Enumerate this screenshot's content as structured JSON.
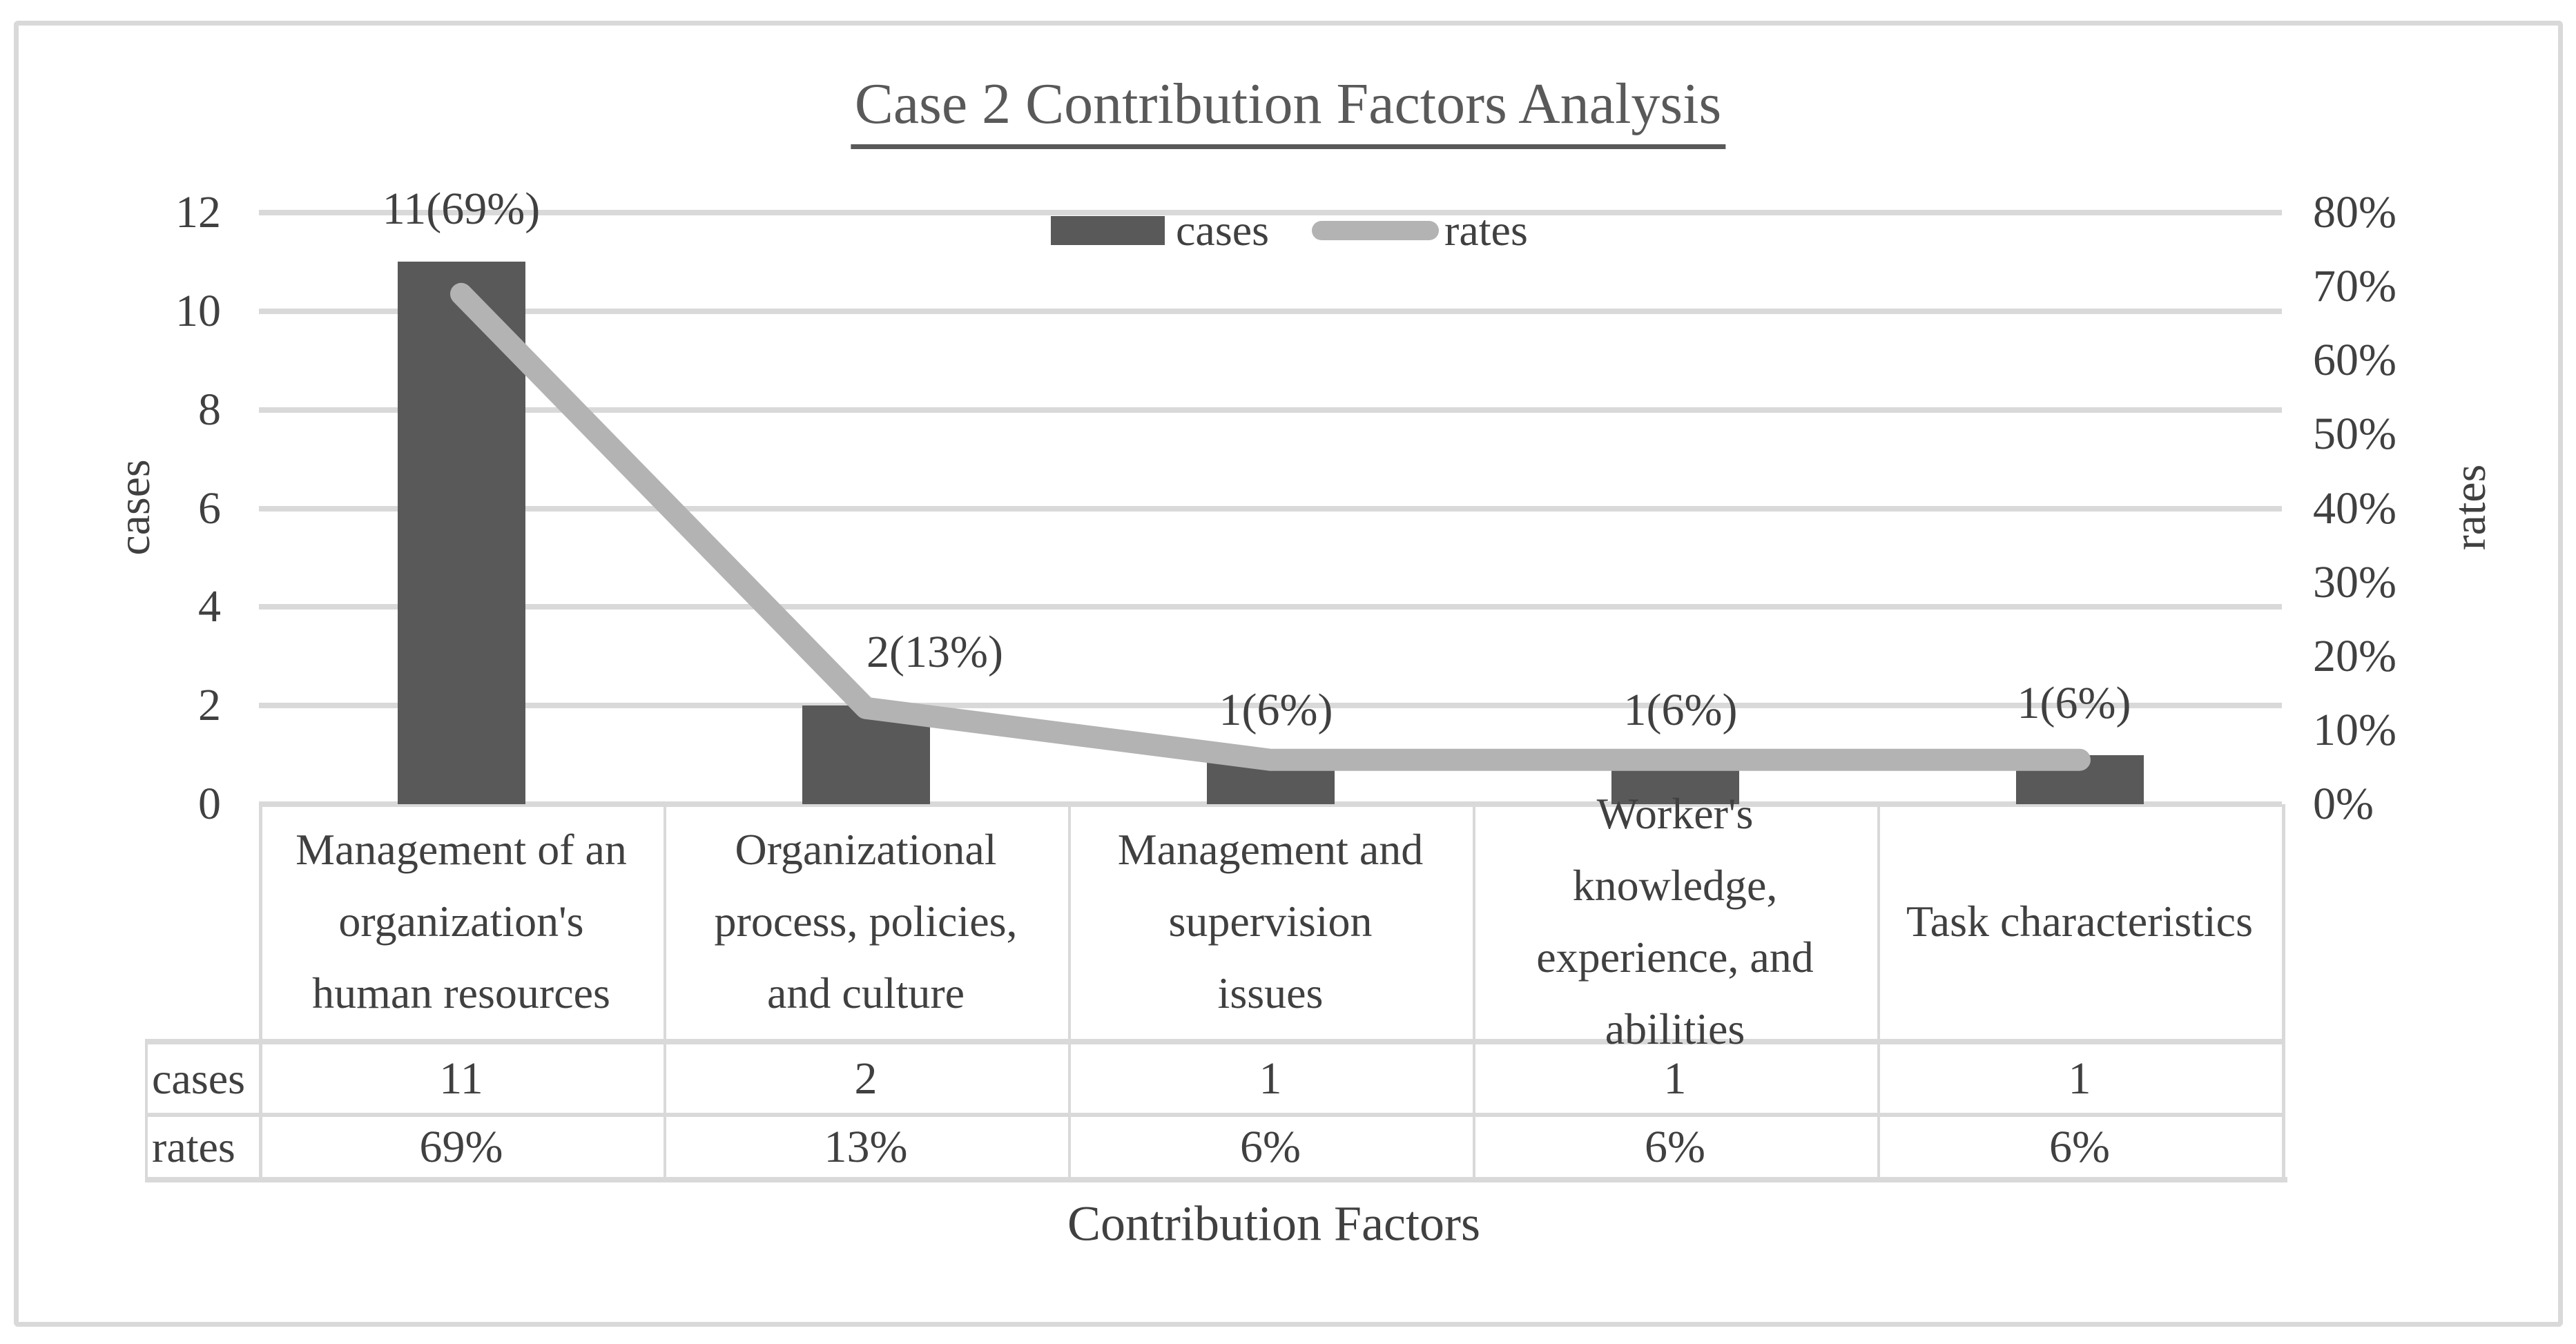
{
  "title": {
    "text": "Case 2 Contribution Factors Analysis"
  },
  "legend": {
    "items": [
      {
        "label": "cases",
        "marker": "bar-swatch"
      },
      {
        "label": "rates",
        "marker": "line-swatch"
      }
    ]
  },
  "axes": {
    "left": {
      "title": "cases",
      "ticks": [
        "12",
        "10",
        "8",
        "6",
        "4",
        "2",
        "0"
      ],
      "range": [
        0,
        12
      ]
    },
    "right": {
      "title": "rates",
      "ticks": [
        "80%",
        "70%",
        "60%",
        "50%",
        "40%",
        "30%",
        "20%",
        "10%",
        "0%"
      ],
      "range": [
        "0%",
        "80%"
      ]
    },
    "bottom": {
      "title": "Contribution Factors"
    }
  },
  "chart_data": {
    "type": "bar+line combo",
    "title": "Case 2 Contribution Factors Analysis",
    "xlabel": "Contribution Factors",
    "categories": [
      "Management of an organization's human resources",
      "Organizational process, policies, and culture",
      "Management and supervision issues",
      "Worker's knowledge, experience, and abilities",
      "Task characteristics"
    ],
    "series": [
      {
        "name": "cases",
        "type": "bar",
        "axis": "left",
        "values": [
          11,
          2,
          1,
          1,
          1
        ]
      },
      {
        "name": "rates",
        "type": "line",
        "axis": "right",
        "values": [
          69,
          13,
          6,
          6,
          6
        ],
        "unit": "%"
      }
    ],
    "data_labels": [
      "11(69%)",
      "2(13%)",
      "1(6%)",
      "1(6%)",
      "1(6%)"
    ],
    "left_ylim": [
      0,
      12
    ],
    "right_ylim_percent": [
      0,
      80
    ],
    "grid": true,
    "legend_position": "top-center"
  },
  "table": {
    "row_headers": [
      "cases",
      "rates"
    ],
    "column_lines": [
      [
        "Management of an",
        "organization's",
        "human resources"
      ],
      [
        "Organizational",
        "process, policies,",
        "and culture"
      ],
      [
        "Management and",
        "supervision",
        "issues"
      ],
      [
        "Worker's",
        "knowledge,",
        "experience, and",
        "abilities"
      ],
      [
        "Task characteristics"
      ]
    ],
    "rows": [
      [
        "11",
        "2",
        "1",
        "1",
        "1"
      ],
      [
        "69%",
        "13%",
        "6%",
        "6%",
        "6%"
      ]
    ]
  },
  "colors": {
    "bar": "#595959",
    "line": "#b3b3b3",
    "grid": "#d9d9d9",
    "frame_border": "#d9d9d9",
    "text": "#404040",
    "title_text": "#595959"
  }
}
